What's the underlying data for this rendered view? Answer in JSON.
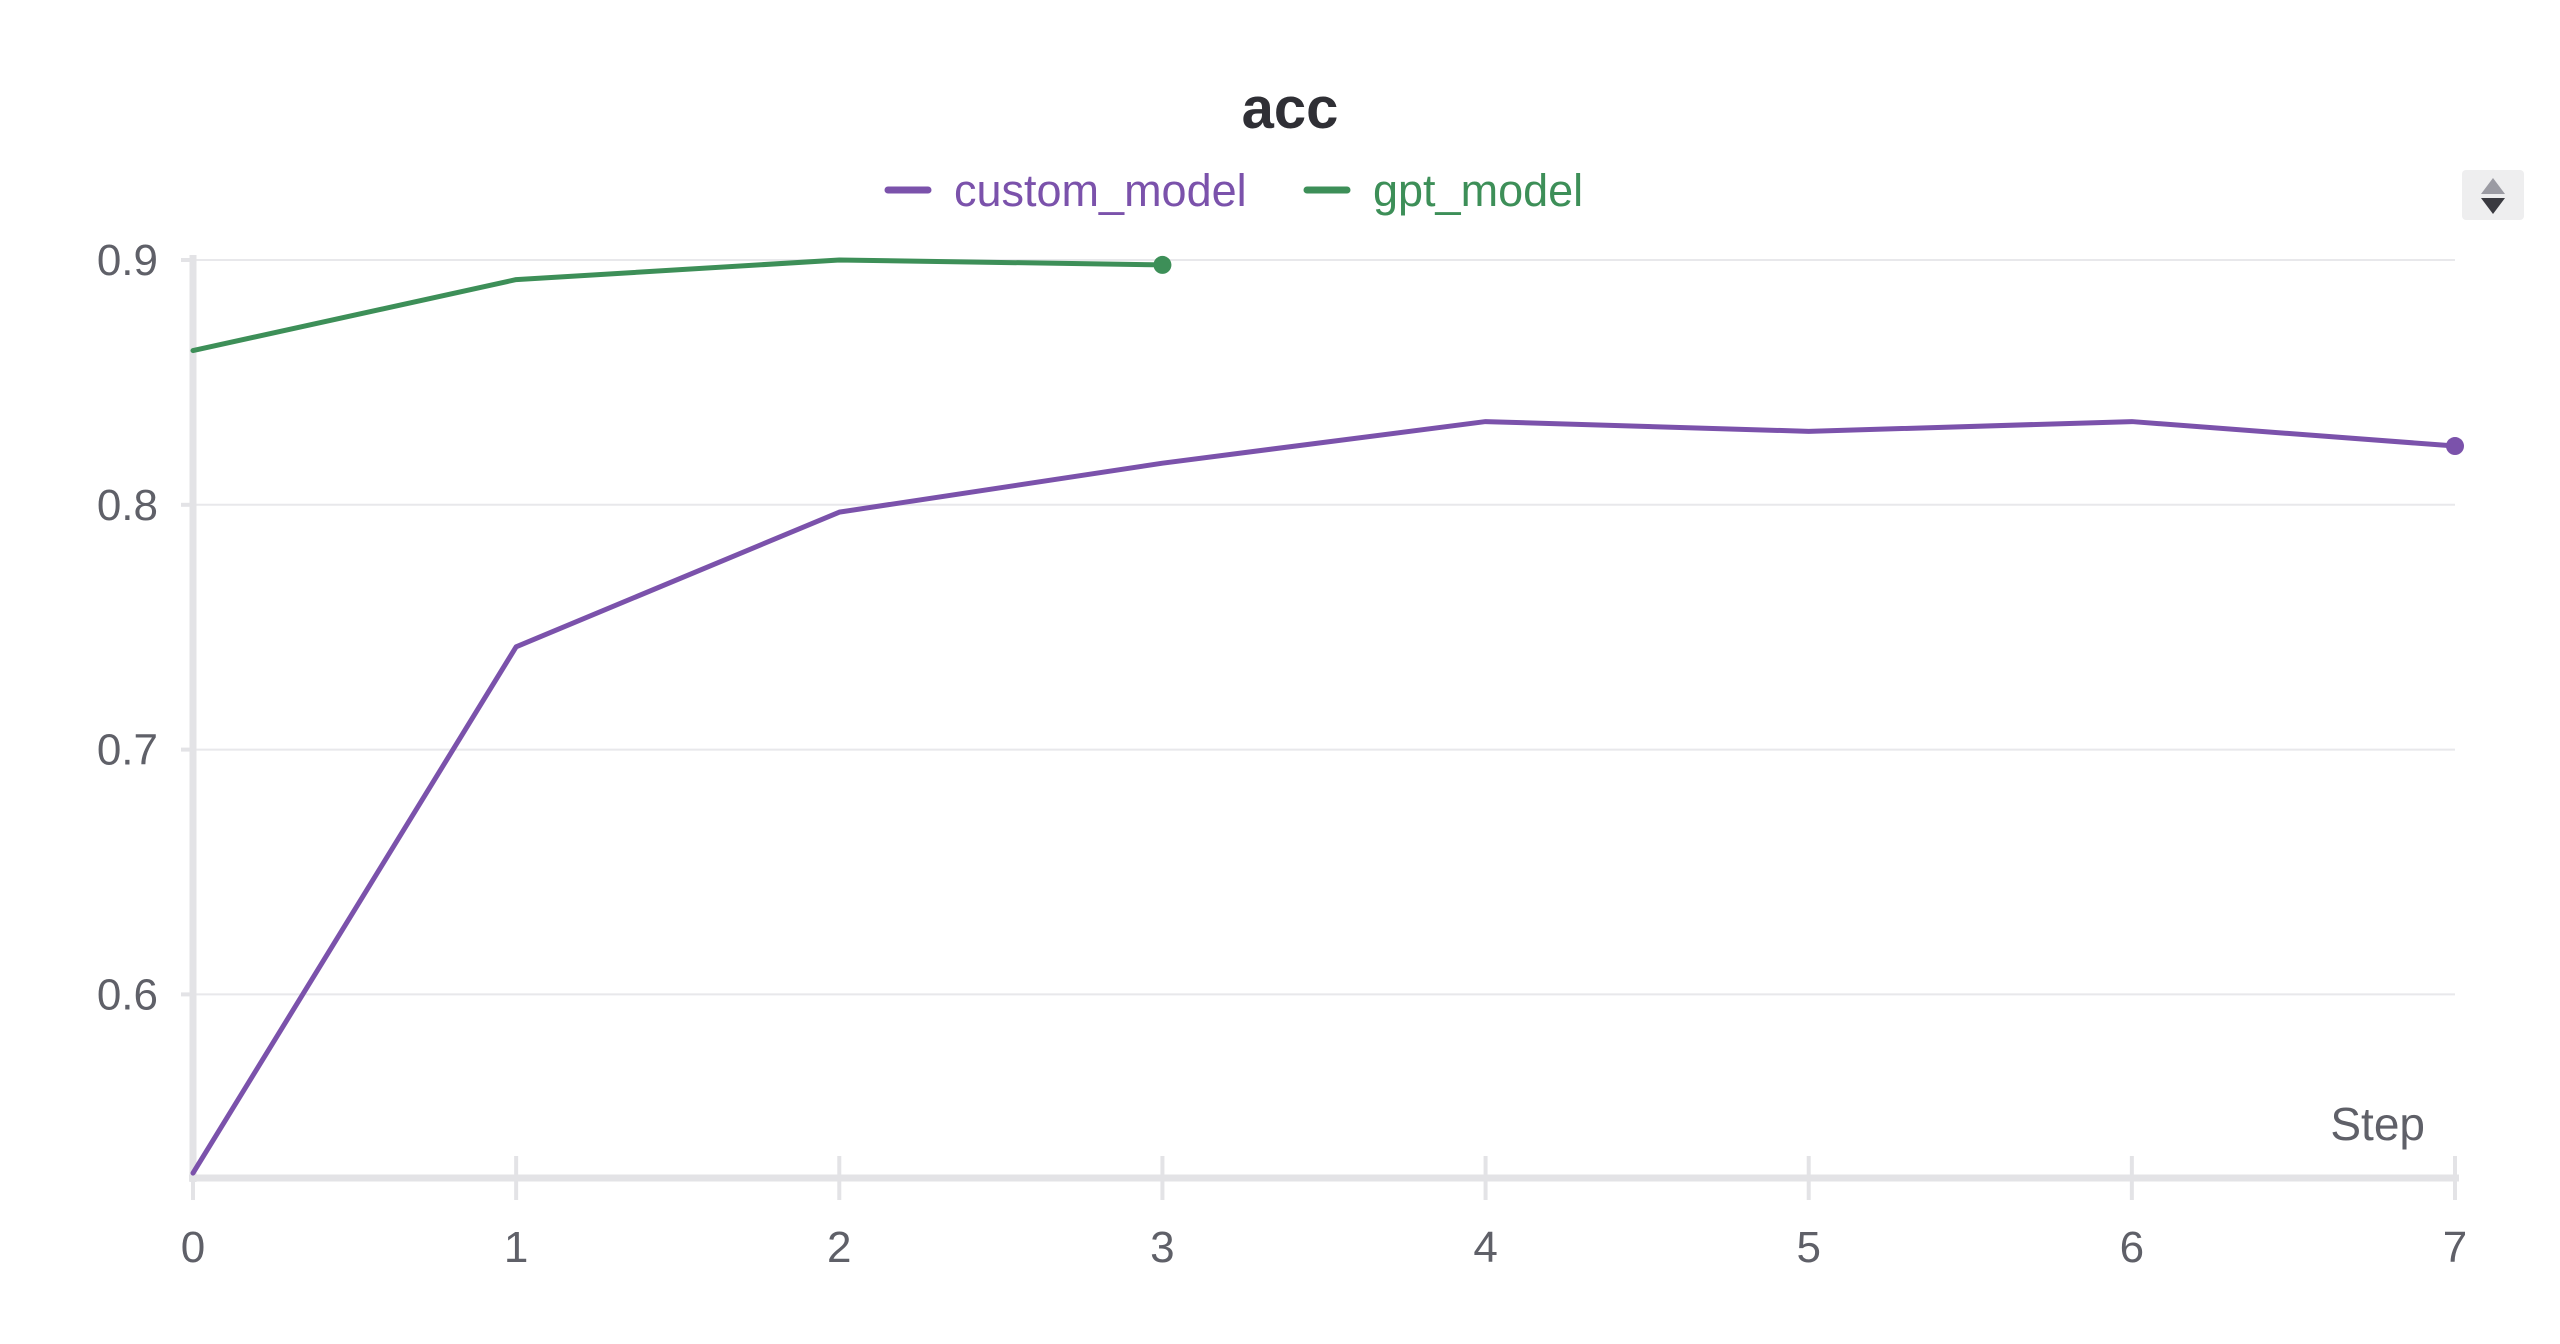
{
  "chart_data": {
    "type": "line",
    "title": "acc",
    "xlabel": "Step",
    "ylabel": "",
    "xlim": [
      0,
      7
    ],
    "ylim": [
      0.525,
      0.9
    ],
    "x_ticks": [
      0,
      1,
      2,
      3,
      4,
      5,
      6,
      7
    ],
    "y_ticks": [
      0.6,
      0.7,
      0.8,
      0.9
    ],
    "y_tick_labels": [
      "0.6",
      "0.7",
      "0.8",
      "0.9"
    ],
    "grid": true,
    "legend_position": "top-center",
    "series": [
      {
        "name": "custom_model",
        "color": "#7b52ab",
        "x": [
          0,
          1,
          2,
          3,
          4,
          5,
          6,
          7
        ],
        "values": [
          0.527,
          0.742,
          0.797,
          0.817,
          0.834,
          0.83,
          0.834,
          0.824
        ]
      },
      {
        "name": "gpt_model",
        "color": "#3d8f58",
        "x": [
          0,
          1,
          2,
          3
        ],
        "values": [
          0.863,
          0.892,
          0.9,
          0.898
        ]
      }
    ]
  },
  "controls": {
    "legend_scroll_icon": "up-down-arrows-icon"
  }
}
